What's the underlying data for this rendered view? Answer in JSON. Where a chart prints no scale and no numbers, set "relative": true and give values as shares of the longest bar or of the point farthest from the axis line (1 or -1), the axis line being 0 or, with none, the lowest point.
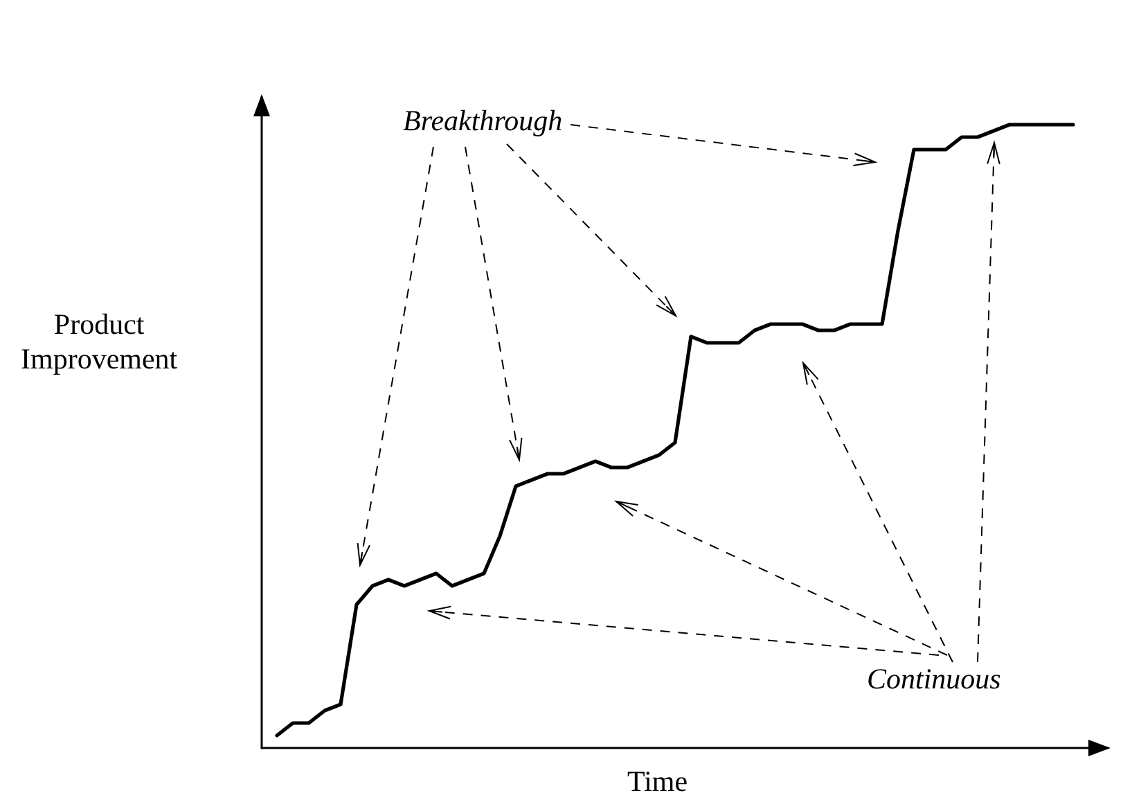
{
  "chart_data": {
    "type": "line",
    "relative": true,
    "xlabel": "Time",
    "ylabel": "Product\nImprovement",
    "annotations": [
      "Breakthrough",
      "Continuous"
    ],
    "categories": [
      null,
      null,
      null,
      null,
      null,
      null,
      null,
      null,
      null,
      null,
      null,
      null,
      null,
      null,
      null,
      null,
      null,
      null,
      null,
      null,
      null,
      null,
      null,
      null,
      null,
      null,
      null,
      null,
      null,
      null,
      null,
      null,
      null,
      null,
      null,
      null,
      null,
      null,
      null,
      null,
      null,
      null,
      null,
      null,
      null,
      null,
      null,
      null,
      null,
      null,
      null
    ],
    "series": [
      {
        "color": "#000000",
        "values": [
          0.02,
          0.04,
          0.04,
          0.06,
          0.07,
          0.23,
          0.26,
          0.27,
          0.26,
          0.27,
          0.28,
          0.26,
          0.27,
          0.28,
          0.34,
          0.42,
          0.43,
          0.44,
          0.44,
          0.45,
          0.46,
          0.45,
          0.45,
          0.46,
          0.47,
          0.49,
          0.66,
          0.65,
          0.65,
          0.65,
          0.67,
          0.68,
          0.68,
          0.68,
          0.67,
          0.67,
          0.68,
          0.68,
          0.68,
          0.83,
          0.96,
          0.96,
          0.96,
          0.98,
          0.98,
          0.99,
          1,
          1,
          1,
          1,
          1
        ]
      }
    ],
    "marker": "none",
    "line_style": "solid",
    "grid": false
  }
}
